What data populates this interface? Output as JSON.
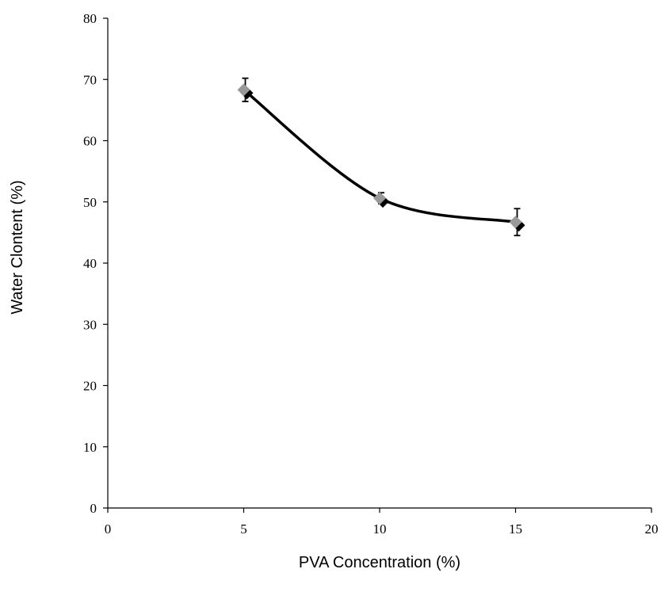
{
  "chart_data": {
    "type": "scatter",
    "title": "",
    "xlabel": "PVA Concentration (%)",
    "ylabel": "Water Clontent (%)",
    "xlim": [
      0,
      20
    ],
    "ylim": [
      0,
      80
    ],
    "xticks": [
      0,
      5,
      10,
      15,
      20
    ],
    "yticks": [
      0,
      10,
      20,
      30,
      40,
      50,
      60,
      70,
      80
    ],
    "grid": false,
    "smooth_line": true,
    "series": [
      {
        "x": [
          5,
          10,
          15
        ],
        "y": [
          68.3,
          50.6,
          46.7
        ],
        "error": [
          1.9,
          0.9,
          2.2
        ]
      }
    ]
  },
  "colors": {
    "line": "#000000",
    "marker": "#999999",
    "marker_shadow": "#000000",
    "axis": "#000000"
  }
}
